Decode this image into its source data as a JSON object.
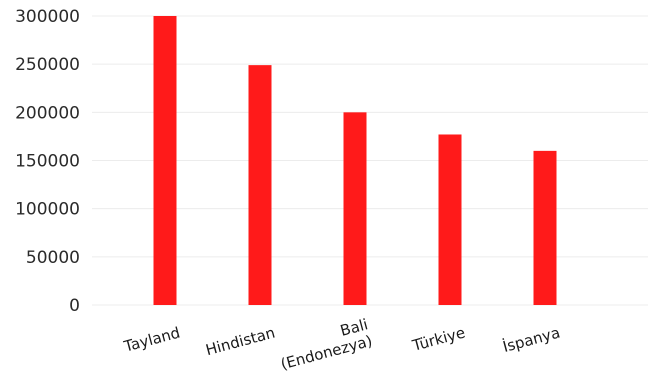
{
  "chart_data": {
    "type": "bar",
    "title": "",
    "xlabel": "",
    "ylabel": "",
    "categories": [
      [
        "Tayland"
      ],
      [
        "Hindistan"
      ],
      [
        "Bali",
        "(Endonezya)"
      ],
      [
        "Türkiye"
      ],
      [
        "İspanya"
      ]
    ],
    "values": [
      300000,
      249000,
      200000,
      177000,
      160000
    ],
    "ylim": [
      0,
      300000
    ],
    "yticks": [
      0,
      50000,
      100000,
      150000,
      200000,
      250000,
      300000
    ],
    "ytick_labels": [
      "0",
      "50000",
      "100000",
      "150000",
      "200000",
      "250000",
      "300000"
    ],
    "bar_color": "#ff1a1a",
    "grid": true,
    "legend": "none"
  }
}
